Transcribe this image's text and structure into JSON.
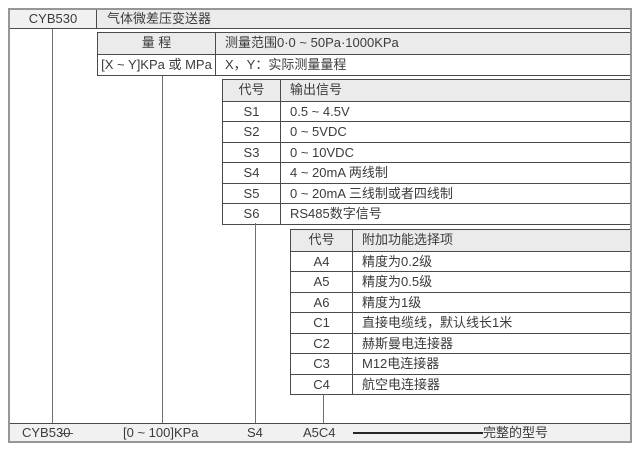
{
  "header": {
    "model": "CYB530",
    "product_name": "气体微差压变送器"
  },
  "range_section": {
    "label": "量 程",
    "spec": "测量范围0·0 ~ 50Pa·1000KPa",
    "format": "[X ~ Y]KPa 或 MPa",
    "format_note": "X，Y：实际测量量程"
  },
  "output_signal_section": {
    "code_header": "代号",
    "desc_header": "输出信号",
    "rows": [
      {
        "code": "S1",
        "desc": "0.5 ~ 4.5V"
      },
      {
        "code": "S2",
        "desc": "0 ~ 5VDC"
      },
      {
        "code": "S3",
        "desc": "0 ~ 10VDC"
      },
      {
        "code": "S4",
        "desc": "4 ~ 20mA 两线制"
      },
      {
        "code": "S5",
        "desc": "0 ~ 20mA 三线制或者四线制"
      },
      {
        "code": "S6",
        "desc": "RS485数字信号"
      }
    ]
  },
  "addon_section": {
    "code_header": "代号",
    "desc_header": "附加功能选择项",
    "rows": [
      {
        "code": "A4",
        "desc": "精度为0.2级"
      },
      {
        "code": "A5",
        "desc": "精度为0.5级"
      },
      {
        "code": "A6",
        "desc": "精度为1级"
      },
      {
        "code": "C1",
        "desc": "直接电缆线，默认线长1米"
      },
      {
        "code": "C2",
        "desc": "赫斯曼电连接器"
      },
      {
        "code": "C3",
        "desc": "M12电连接器"
      },
      {
        "code": "C4",
        "desc": "航空电连接器"
      }
    ]
  },
  "example_row": {
    "model": "CYB530",
    "dash": "—",
    "range": "[0 ~ 100]KPa",
    "signal": "S4",
    "addon": "A5C4",
    "label": "完整的型号"
  }
}
